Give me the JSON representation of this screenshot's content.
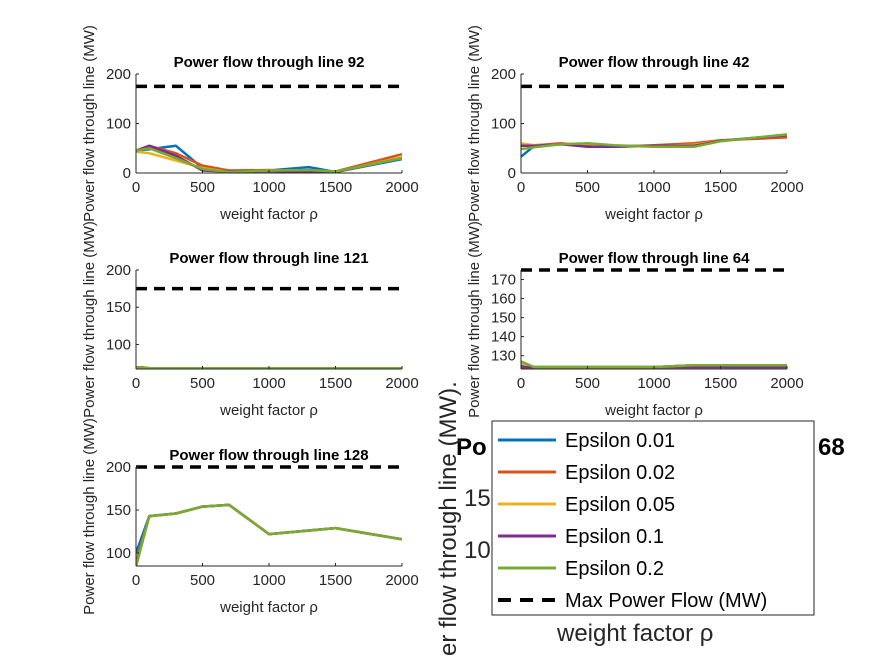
{
  "legend": {
    "entries": [
      {
        "label": "Epsilon 0.01",
        "color": "#0072BD",
        "dashed": false
      },
      {
        "label": "Epsilon 0.02",
        "color": "#D95319",
        "dashed": false
      },
      {
        "label": "Epsilon 0.05",
        "color": "#EDB120",
        "dashed": false
      },
      {
        "label": "Epsilon 0.1",
        "color": "#7E2F8E",
        "dashed": false
      },
      {
        "label": "Epsilon 0.2",
        "color": "#77AC30",
        "dashed": false
      },
      {
        "label": "Max Power Flow (MW)",
        "color": "#000000",
        "dashed": true
      }
    ]
  },
  "background_axis": {
    "title_fragment_left": "Po",
    "title_fragment_right": "68",
    "ylabel_fragment": "er flow through line (MW).",
    "xlabel": "weight factor ρ",
    "tick_fragments": [
      "15",
      "10"
    ]
  },
  "chart_data": [
    {
      "type": "line",
      "title": "Power flow through line 92",
      "xlabel": "weight factor ρ",
      "ylabel": "Power flow through line (MW)",
      "xlim": [
        0,
        2000
      ],
      "ylim": [
        0,
        200
      ],
      "xticks": [
        0,
        500,
        1000,
        1500,
        2000
      ],
      "yticks": [
        0,
        100,
        200
      ],
      "max_flow": 175,
      "x": [
        0,
        100,
        300,
        500,
        700,
        1000,
        1300,
        1500,
        2000
      ],
      "series": [
        {
          "name": "Epsilon 0.01",
          "values": [
            45,
            48,
            55,
            10,
            3,
            5,
            12,
            2,
            28
          ]
        },
        {
          "name": "Epsilon 0.02",
          "values": [
            45,
            55,
            40,
            15,
            5,
            6,
            3,
            3,
            38
          ]
        },
        {
          "name": "Epsilon 0.05",
          "values": [
            43,
            40,
            25,
            10,
            2,
            5,
            4,
            2,
            32
          ]
        },
        {
          "name": "Epsilon 0.1",
          "values": [
            45,
            55,
            35,
            5,
            3,
            4,
            2,
            2,
            30
          ]
        },
        {
          "name": "Epsilon 0.2",
          "values": [
            45,
            50,
            30,
            8,
            2,
            5,
            6,
            3,
            30
          ]
        }
      ]
    },
    {
      "type": "line",
      "title": "Power flow through line 42",
      "xlabel": "weight factor ρ",
      "ylabel": "Power flow through line (MW)",
      "xlim": [
        0,
        2000
      ],
      "ylim": [
        0,
        200
      ],
      "xticks": [
        0,
        500,
        1000,
        1500,
        2000
      ],
      "yticks": [
        0,
        100,
        200
      ],
      "max_flow": 175,
      "x": [
        0,
        100,
        300,
        500,
        700,
        1000,
        1300,
        1500,
        2000
      ],
      "series": [
        {
          "name": "Epsilon 0.01",
          "values": [
            33,
            55,
            58,
            57,
            55,
            55,
            57,
            65,
            77
          ]
        },
        {
          "name": "Epsilon 0.02",
          "values": [
            58,
            56,
            60,
            55,
            53,
            56,
            60,
            66,
            72
          ]
        },
        {
          "name": "Epsilon 0.05",
          "values": [
            60,
            56,
            58,
            59,
            55,
            54,
            57,
            65,
            76
          ]
        },
        {
          "name": "Epsilon 0.1",
          "values": [
            55,
            55,
            58,
            53,
            53,
            55,
            55,
            65,
            76
          ]
        },
        {
          "name": "Epsilon 0.2",
          "values": [
            48,
            52,
            58,
            60,
            56,
            53,
            53,
            64,
            78
          ]
        }
      ]
    },
    {
      "type": "line",
      "title": "Power flow through line 121",
      "xlabel": "weight factor ρ",
      "ylabel": "Power flow through line (MW)",
      "xlim": [
        0,
        2000
      ],
      "ylim": [
        67,
        200
      ],
      "xticks": [
        0,
        500,
        1000,
        1500,
        2000
      ],
      "yticks": [
        100,
        150,
        200
      ],
      "max_flow": 175,
      "x": [
        0,
        50,
        100,
        300,
        500,
        700,
        1000,
        1300,
        1500,
        2000
      ],
      "series": [
        {
          "name": "Epsilon 0.01",
          "values": [
            69,
            69,
            68,
            68,
            68,
            68,
            68,
            68,
            68,
            68
          ]
        },
        {
          "name": "Epsilon 0.02",
          "values": [
            69,
            69,
            68,
            68,
            68,
            68,
            68,
            68,
            68,
            68
          ]
        },
        {
          "name": "Epsilon 0.05",
          "values": [
            69,
            69,
            68,
            68,
            68,
            68,
            68,
            68,
            68,
            68
          ]
        },
        {
          "name": "Epsilon 0.1",
          "values": [
            69,
            69,
            68,
            68,
            68,
            68,
            68,
            68,
            68,
            68
          ]
        },
        {
          "name": "Epsilon 0.2",
          "values": [
            69,
            69,
            68,
            68,
            68,
            68,
            68,
            68,
            68,
            68
          ]
        }
      ]
    },
    {
      "type": "line",
      "title": "Power flow through line 64",
      "xlabel": "weight factor ρ",
      "ylabel": "Power flow through line (MW)",
      "xlim": [
        0,
        2000
      ],
      "ylim": [
        123,
        175
      ],
      "xticks": [
        0,
        500,
        1000,
        1500,
        2000
      ],
      "yticks": [
        130,
        140,
        150,
        160,
        170
      ],
      "max_flow": 175,
      "x": [
        0,
        100,
        300,
        500,
        700,
        1000,
        1300,
        1500,
        2000
      ],
      "series": [
        {
          "name": "Epsilon 0.01",
          "values": [
            125,
            124,
            124,
            124,
            124,
            124,
            125,
            125,
            125
          ]
        },
        {
          "name": "Epsilon 0.02",
          "values": [
            124,
            124,
            124,
            124,
            124,
            124,
            125,
            125,
            125
          ]
        },
        {
          "name": "Epsilon 0.05",
          "values": [
            126,
            124,
            124,
            124,
            124,
            124,
            125,
            125,
            125
          ]
        },
        {
          "name": "Epsilon 0.1",
          "values": [
            124,
            124,
            124,
            124,
            124,
            124,
            124,
            124,
            124
          ]
        },
        {
          "name": "Epsilon 0.2",
          "values": [
            127,
            124,
            124,
            124,
            124,
            124,
            125,
            125,
            125
          ]
        }
      ]
    },
    {
      "type": "line",
      "title": "Power flow through line 128",
      "xlabel": "weight factor ρ",
      "ylabel": "Power flow through line (MW)",
      "xlim": [
        0,
        2000
      ],
      "ylim": [
        85,
        200
      ],
      "xticks": [
        0,
        500,
        1000,
        1500,
        2000
      ],
      "yticks": [
        100,
        150,
        200
      ],
      "max_flow": 200,
      "x": [
        0,
        100,
        300,
        500,
        700,
        1000,
        1500,
        2000
      ],
      "series": [
        {
          "name": "Epsilon 0.01",
          "values": [
            100,
            143,
            146,
            154,
            156,
            122,
            129,
            116
          ]
        },
        {
          "name": "Epsilon 0.02",
          "values": [
            90,
            143,
            146,
            154,
            156,
            122,
            129,
            116
          ]
        },
        {
          "name": "Epsilon 0.05",
          "values": [
            88,
            143,
            146,
            154,
            156,
            122,
            129,
            116
          ]
        },
        {
          "name": "Epsilon 0.1",
          "values": [
            86,
            143,
            146,
            154,
            156,
            122,
            129,
            116
          ]
        },
        {
          "name": "Epsilon 0.2",
          "values": [
            84,
            143,
            146,
            154,
            156,
            122,
            129,
            116
          ]
        }
      ]
    }
  ]
}
